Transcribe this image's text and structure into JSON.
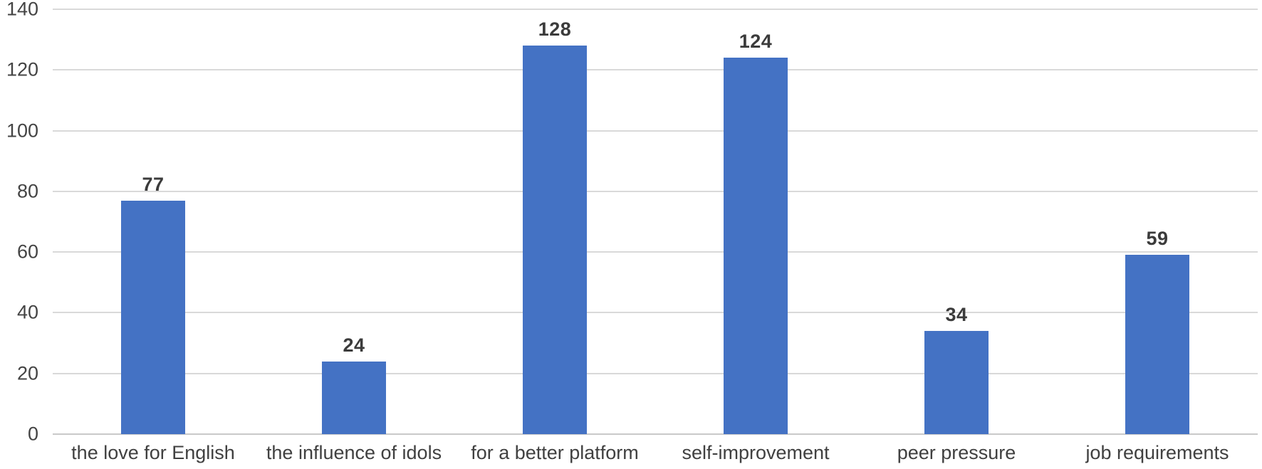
{
  "chart_data": {
    "type": "bar",
    "title": "",
    "xlabel": "",
    "ylabel": "",
    "categories": [
      "the love for English",
      "the influence of idols",
      "for a better platform",
      "self-improvement",
      "peer pressure",
      "job requirements"
    ],
    "values": [
      77,
      24,
      128,
      124,
      34,
      59
    ],
    "data_labels": [
      "77",
      "24",
      "128",
      "124",
      "34",
      "59"
    ],
    "ylim": [
      0,
      140
    ],
    "yticks": [
      0,
      20,
      40,
      60,
      80,
      100,
      120,
      140
    ],
    "grid": true,
    "legend_position": "none",
    "colors": {
      "bar_fill": "#4472C4",
      "gridline": "#D9D9D9",
      "axis_baseline": "#C9C9C9",
      "tick_label": "#444444",
      "data_label": "#3B3B3B",
      "category_label": "#404040",
      "background": "#FFFFFF"
    }
  }
}
